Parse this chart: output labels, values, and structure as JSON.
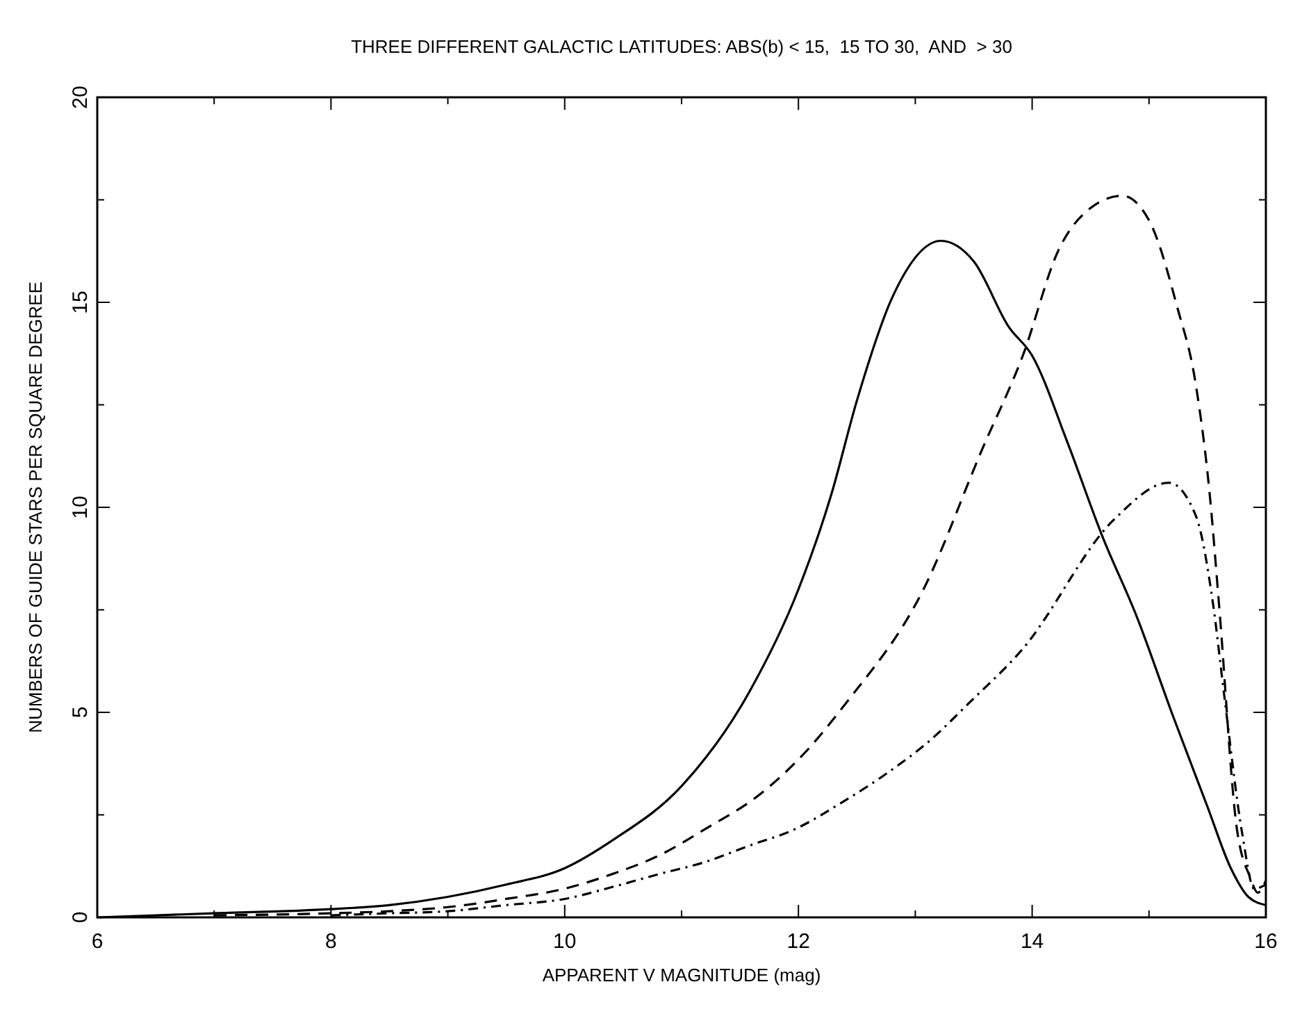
{
  "chart_data": {
    "type": "line",
    "title": "THREE DIFFERENT GALACTIC LATITUDES: ABS(b) < 15,  15 TO 30,  AND  > 30",
    "xlabel": "APPARENT V MAGNITUDE (mag)",
    "ylabel": "NUMBERS OF GUIDE STARS PER SQUARE DEGREE",
    "xlim": [
      6,
      16
    ],
    "ylim": [
      0,
      20
    ],
    "xticks": [
      6,
      {
        "value": 7,
        "label": null
      },
      8,
      {
        "value": 9,
        "label": null
      },
      10,
      {
        "value": 11,
        "label": null
      },
      12,
      {
        "value": 13,
        "label": null
      },
      14,
      {
        "value": 15,
        "label": null
      },
      16
    ],
    "yticks": [
      0,
      {
        "value": 2.5,
        "label": null
      },
      5,
      {
        "value": 7.5,
        "label": null
      },
      10,
      {
        "value": 12.5,
        "label": null
      },
      15,
      {
        "value": 17.5,
        "label": null
      },
      20
    ],
    "grid": false,
    "marker": "none",
    "series": [
      {
        "color": "#000000",
        "line_style": "solid",
        "x": [
          6,
          7,
          8,
          8.5,
          9,
          9.5,
          10,
          10.42,
          11,
          11.58,
          12,
          12.28,
          12.5,
          12.8,
          13.22,
          13.5,
          13.8,
          14.0,
          14.3,
          14.6,
          14.9,
          15.2,
          15.5,
          15.7,
          15.85,
          16
        ],
        "values": [
          0,
          0.1,
          0.2,
          0.3,
          0.5,
          0.8,
          1.2,
          1.9,
          3.2,
          5.5,
          8.0,
          10.3,
          12.6,
          15.1,
          16.5,
          16.0,
          14.4,
          13.7,
          11.6,
          9.3,
          7.3,
          4.95,
          2.7,
          1.2,
          0.5,
          0.3
        ]
      },
      {
        "color": "#000000",
        "line_style": "dashed",
        "x": [
          7,
          8,
          8.5,
          9,
          9.5,
          10,
          10.42,
          10.8,
          11.2,
          11.67,
          12.05,
          12.4,
          13.07,
          13.57,
          13.92,
          14.23,
          14.5,
          14.77,
          15.0,
          15.24,
          15.4,
          15.52,
          15.6,
          15.75,
          15.87,
          15.93,
          16
        ],
        "values": [
          0.05,
          0.1,
          0.15,
          0.25,
          0.45,
          0.7,
          1.07,
          1.5,
          2.15,
          3.0,
          4.0,
          5.2,
          8.0,
          11.4,
          13.7,
          16.3,
          17.3,
          17.6,
          17.0,
          14.9,
          13.0,
          10.3,
          7.6,
          2.2,
          0.95,
          0.6,
          0.9
        ]
      },
      {
        "color": "#000000",
        "line_style": "dashdot",
        "x": [
          8,
          8.5,
          9,
          9.5,
          10,
          10.42,
          10.8,
          11.2,
          11.58,
          11.97,
          12.37,
          12.75,
          13.14,
          13.45,
          13.92,
          14.7,
          15.17,
          15.4,
          15.55,
          15.64,
          15.8,
          15.9,
          16
        ],
        "values": [
          0.05,
          0.1,
          0.15,
          0.3,
          0.45,
          0.75,
          1.05,
          1.35,
          1.75,
          2.15,
          2.8,
          3.5,
          4.35,
          5.2,
          6.55,
          9.7,
          10.6,
          9.8,
          7.6,
          5.5,
          2.0,
          0.7,
          0.8
        ]
      }
    ]
  }
}
